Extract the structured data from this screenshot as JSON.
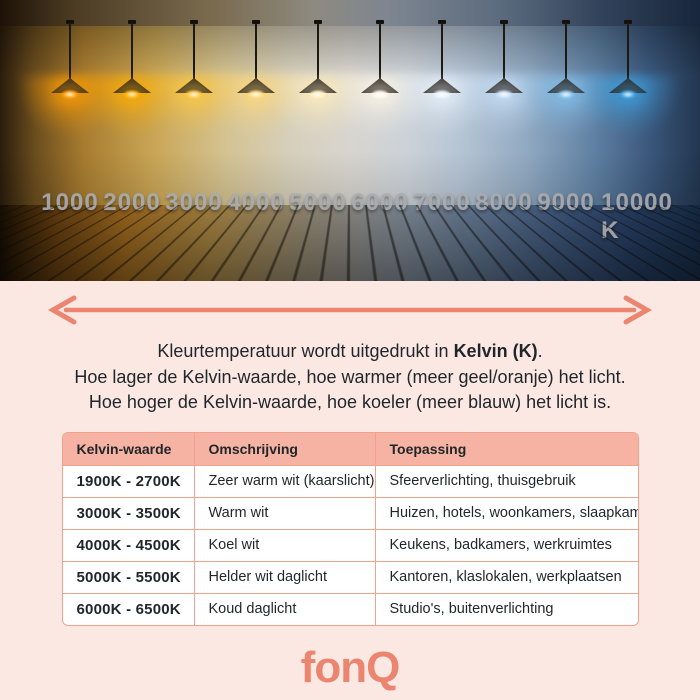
{
  "photo": {
    "kelvin_labels": [
      "1000",
      "2000",
      "3000",
      "4000",
      "5000",
      "6000",
      "7000",
      "8000",
      "9000",
      "10000 K"
    ],
    "lamps": [
      {
        "kelvin": "1000",
        "color": "#ff9d00"
      },
      {
        "kelvin": "2000",
        "color": "#ffae00"
      },
      {
        "kelvin": "3000",
        "color": "#ffc83e"
      },
      {
        "kelvin": "4000",
        "color": "#ffd97c"
      },
      {
        "kelvin": "5000",
        "color": "#ffedbd"
      },
      {
        "kelvin": "6000",
        "color": "#fdf6e8"
      },
      {
        "kelvin": "7000",
        "color": "#e9f3fd"
      },
      {
        "kelvin": "8000",
        "color": "#c8e0f8"
      },
      {
        "kelvin": "9000",
        "color": "#85c2ee"
      },
      {
        "kelvin": "10000",
        "color": "#3da1e0"
      }
    ]
  },
  "intro": {
    "line1_prefix": "Kleurtemperatuur wordt uitgedrukt in ",
    "line1_bold": "Kelvin (K)",
    "line1_suffix": ".",
    "line2": "Hoe lager de Kelvin-waarde, hoe warmer (meer geel/oranje) het licht.",
    "line3": "Hoe hoger de Kelvin-waarde, hoe koeler (meer blauw) het licht is."
  },
  "table": {
    "headers": [
      "Kelvin-waarde",
      "Omschrijving",
      "Toepassing"
    ],
    "rows": [
      [
        "1900K - 2700K",
        "Zeer warm wit (kaarslicht)",
        "Sfeerverlichting, thuisgebruik"
      ],
      [
        "3000K - 3500K",
        "Warm wit",
        "Huizen, hotels, woonkamers, slaapkamers"
      ],
      [
        "4000K - 4500K",
        "Koel wit",
        "Keukens, badkamers, werkruimtes"
      ],
      [
        "5000K - 5500K",
        "Helder wit daglicht",
        "Kantoren, klaslokalen, werkplaatsen"
      ],
      [
        "6000K - 6500K",
        "Koud daglicht",
        "Studio's, buitenverlichting"
      ]
    ]
  },
  "logo": {
    "text": "fonQ"
  },
  "colors": {
    "accent": "#ec8570",
    "background": "#fce8e3",
    "table_header_bg": "#f6b2a2",
    "table_border": "#f1a28d",
    "text": "#1f262a"
  }
}
